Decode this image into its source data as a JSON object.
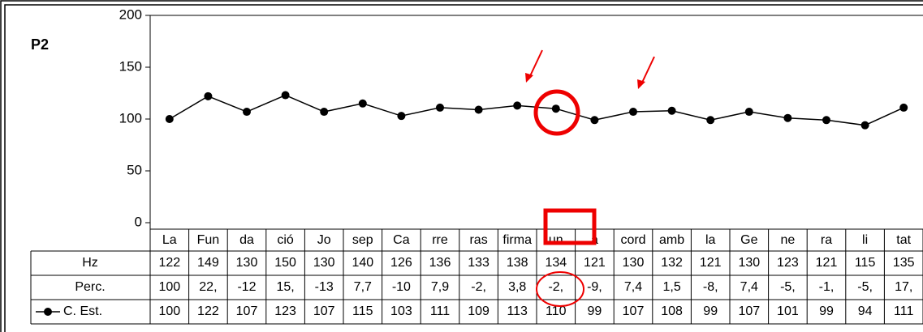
{
  "chart_data": {
    "type": "line",
    "title": "P2",
    "categories": [
      "La",
      "Fun",
      "da",
      "ció",
      "Jo",
      "sep",
      "Ca",
      "rre",
      "ras",
      "firma",
      "un",
      "a",
      "cord",
      "amb",
      "la",
      "Ge",
      "ne",
      "ra",
      "li",
      "tat"
    ],
    "series": [
      {
        "name": "C. Est.",
        "color": "#000000",
        "values": [
          100,
          122,
          107,
          123,
          107,
          115,
          103,
          111,
          109,
          113,
          110,
          99,
          107,
          108,
          99,
          107,
          101,
          99,
          94,
          111
        ]
      }
    ],
    "ylim": [
      0,
      200
    ],
    "yticks": [
      0,
      50,
      100,
      150,
      200
    ]
  },
  "table": {
    "rows": [
      {
        "label": "Hz",
        "cells": [
          122,
          149,
          130,
          150,
          130,
          140,
          126,
          136,
          133,
          138,
          134,
          121,
          130,
          132,
          121,
          130,
          123,
          121,
          115,
          135
        ]
      },
      {
        "label": "Perc.",
        "cells": [
          "100",
          "22,",
          "-12",
          "15,",
          "-13",
          "7,7",
          "-10",
          "7,9",
          "-2,",
          "3,8",
          "-2,",
          "-9,",
          "7,4",
          "1,5",
          "-8,",
          "7,4",
          "-5,",
          "-1,",
          "-5,",
          "17,"
        ]
      }
    ]
  }
}
